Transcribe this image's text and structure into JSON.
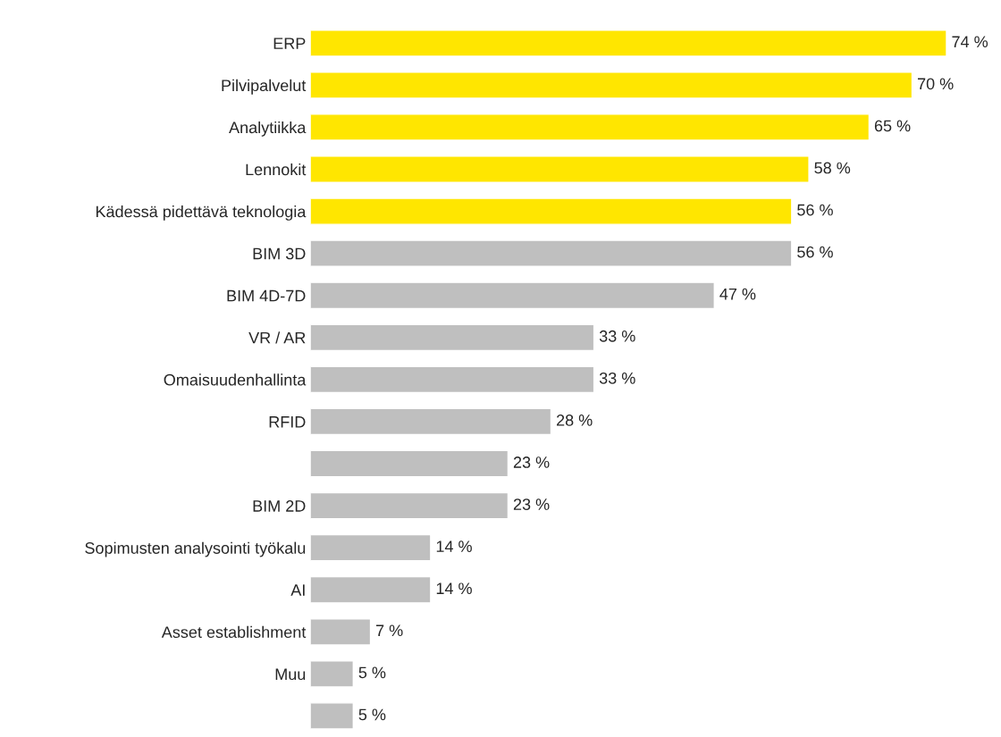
{
  "chart_data": {
    "type": "bar",
    "orientation": "horizontal",
    "categories": [
      "ERP",
      "Pilvipalvelut",
      "Analytiikka",
      "Lennokit",
      "Kädessä pidettävä teknologia",
      "BIM 3D",
      "BIM 4D-7D",
      "VR / AR",
      "Omaisuudenhallinta",
      "RFID",
      null,
      "BIM 2D",
      "Sopimusten analysointi työkalu",
      "AI",
      "Asset establishment",
      "Muu",
      null
    ],
    "values": [
      74,
      70,
      65,
      58,
      56,
      56,
      47,
      33,
      33,
      28,
      23,
      23,
      14,
      14,
      7,
      5,
      5
    ],
    "colors": [
      "#ffe600",
      "#ffe600",
      "#ffe600",
      "#ffe600",
      "#ffe600",
      "#bfbfbf",
      "#bfbfbf",
      "#bfbfbf",
      "#bfbfbf",
      "#bfbfbf",
      "#bfbfbf",
      "#bfbfbf",
      "#bfbfbf",
      "#bfbfbf",
      "#bfbfbf",
      "#bfbfbf",
      "#bfbfbf"
    ],
    "value_labels": [
      "74 %",
      "70 %",
      "65 %",
      "58 %",
      "56 %",
      "56 %",
      "47 %",
      "33 %",
      "33 %",
      "28 %",
      "23 %",
      "23 %",
      "14 %",
      "14 %",
      "7 %",
      "5 %",
      "5 %"
    ],
    "grid": false,
    "legend": false
  }
}
